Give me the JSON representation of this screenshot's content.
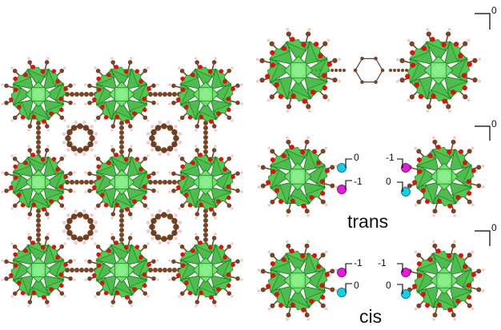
{
  "colors": {
    "polyhedron": "#3fb63f",
    "polyhedron_dark": "#1e7d1e",
    "core": "#6fe06f",
    "oxygen": "#e01010",
    "carbon": "#7a4424",
    "hydrogen": "#efc8d2",
    "site_zero": "#17cfe3",
    "site_minus_one": "#e21fd8"
  },
  "labels": {
    "charge_zero": "0",
    "charge_minus_one": "-1",
    "isomer_trans": "trans",
    "isomer_cis": "cis"
  }
}
